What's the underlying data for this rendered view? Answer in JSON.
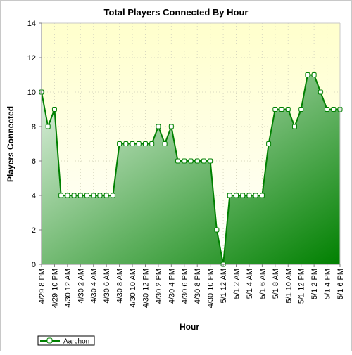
{
  "chart_data": {
    "type": "area",
    "title": "Total Players Connected By Hour",
    "xlabel": "Hour",
    "ylabel": "Players Connected",
    "ylim": [
      0,
      14
    ],
    "yticks": [
      0,
      2,
      4,
      6,
      8,
      10,
      12,
      14
    ],
    "grid": true,
    "legend_position": "bottom-left",
    "x": [
      "4/29 8 PM",
      "4/29 9 PM",
      "4/29 10 PM",
      "4/29 11 PM",
      "4/30 12 AM",
      "4/30 1 AM",
      "4/30 2 AM",
      "4/30 3 AM",
      "4/30 4 AM",
      "4/30 5 AM",
      "4/30 6 AM",
      "4/30 7 AM",
      "4/30 8 AM",
      "4/30 9 AM",
      "4/30 10 AM",
      "4/30 11 AM",
      "4/30 12 PM",
      "4/30 1 PM",
      "4/30 2 PM",
      "4/30 3 PM",
      "4/30 4 PM",
      "4/30 5 PM",
      "4/30 6 PM",
      "4/30 7 PM",
      "4/30 8 PM",
      "4/30 9 PM",
      "4/30 10 PM",
      "4/30 11 PM",
      "5/1 12 AM",
      "5/1 1 AM",
      "5/1 2 AM",
      "5/1 3 AM",
      "5/1 4 AM",
      "5/1 5 AM",
      "5/1 6 AM",
      "5/1 7 AM",
      "5/1 8 AM",
      "5/1 9 AM",
      "5/1 10 AM",
      "5/1 11 AM",
      "5/1 12 PM",
      "5/1 1 PM",
      "5/1 2 PM",
      "5/1 3 PM",
      "5/1 4 PM",
      "5/1 5 PM",
      "5/1 6 PM"
    ],
    "tick_labels": [
      "4/29 8 PM",
      "4/29 10 PM",
      "4/30 12 AM",
      "4/30 2 AM",
      "4/30 4 AM",
      "4/30 6 AM",
      "4/30 8 AM",
      "4/30 10 AM",
      "4/30 12 PM",
      "4/30 2 PM",
      "4/30 4 PM",
      "4/30 6 PM",
      "4/30 8 PM",
      "4/30 10 PM",
      "5/1 12 AM",
      "5/1 2 AM",
      "5/1 4 AM",
      "5/1 6 AM",
      "5/1 8 AM",
      "5/1 10 AM",
      "5/1 12 PM",
      "5/1 2 PM",
      "5/1 4 PM",
      "5/1 6 PM"
    ],
    "series": [
      {
        "name": "Aarchon",
        "color": "#008000",
        "values": [
          10,
          8,
          9,
          4,
          4,
          4,
          4,
          4,
          4,
          4,
          4,
          4,
          7,
          7,
          7,
          7,
          7,
          7,
          8,
          7,
          8,
          6,
          6,
          6,
          6,
          6,
          6,
          2,
          0,
          4,
          4,
          4,
          4,
          4,
          4,
          7,
          9,
          9,
          9,
          8,
          9,
          11,
          11,
          10,
          9,
          9,
          9
        ]
      }
    ]
  },
  "colors": {
    "plot_bg_top": "#ffffcc",
    "plot_bg_bottom": "#ffffff",
    "area_light": "#e8f5e8",
    "area_dark": "#008000",
    "line": "#008000"
  }
}
